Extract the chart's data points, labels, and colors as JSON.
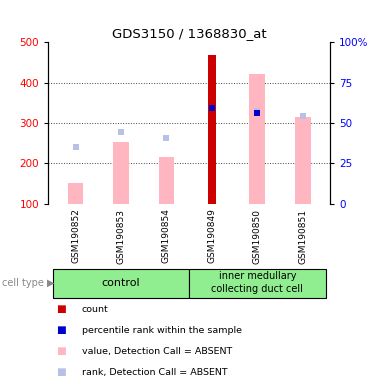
{
  "title": "GDS3150 / 1368830_at",
  "samples": [
    "GSM190852",
    "GSM190853",
    "GSM190854",
    "GSM190849",
    "GSM190850",
    "GSM190851"
  ],
  "value_absent": [
    150,
    253,
    215,
    null,
    420,
    315
  ],
  "rank_absent": [
    240,
    277,
    262,
    null,
    330,
    317
  ],
  "count_value": [
    null,
    null,
    null,
    468,
    null,
    null
  ],
  "percentile_rank": [
    null,
    null,
    null,
    338,
    325,
    null
  ],
  "left_ylim": [
    100,
    500
  ],
  "left_yticks": [
    100,
    200,
    300,
    400,
    500
  ],
  "right_ylim": [
    0,
    100
  ],
  "right_yticks": [
    0,
    25,
    50,
    75,
    100
  ],
  "right_yticklabels": [
    "0",
    "25",
    "50",
    "75",
    "100%"
  ],
  "bar_width": 0.35,
  "pink_color": "#ffb6c1",
  "lavender_color": "#b8c0e8",
  "red_color": "#cc0000",
  "blue_color": "#0000cc",
  "gray_bg": "#d0d0d0",
  "green_bg": "#90ee90",
  "grid_color": "#444444",
  "baseline": 100,
  "group1_name": "control",
  "group2_name": "inner medullary\ncollecting duct cell",
  "legend_items": [
    {
      "color": "#cc0000",
      "label": "count"
    },
    {
      "color": "#0000cc",
      "label": "percentile rank within the sample"
    },
    {
      "color": "#ffb6c1",
      "label": "value, Detection Call = ABSENT"
    },
    {
      "color": "#b8c0e8",
      "label": "rank, Detection Call = ABSENT"
    }
  ]
}
